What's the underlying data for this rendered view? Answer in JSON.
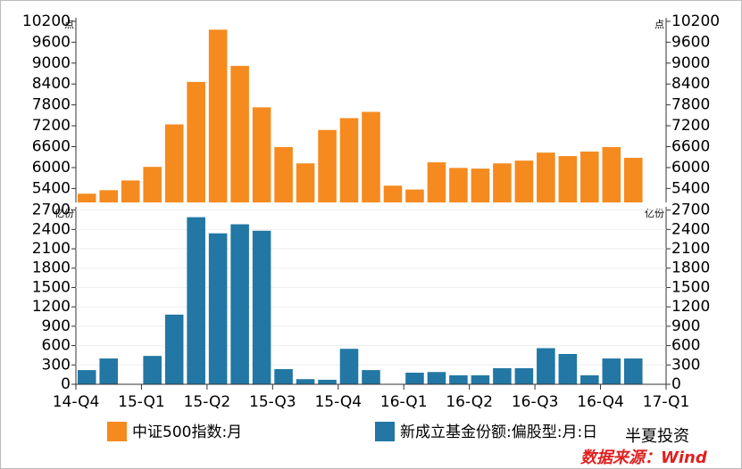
{
  "chart_data": [
    {
      "type": "bar",
      "unit_label": "点",
      "color": "#f58a1f",
      "legend": "中证500指数:月",
      "values": [
        5250,
        5350,
        5630,
        6020,
        7240,
        8460,
        9960,
        8920,
        7730,
        6590,
        6120,
        7080,
        7420,
        7600,
        5480,
        5370,
        6150,
        5990,
        5970,
        6120,
        6200,
        6430,
        6330,
        6460,
        6590,
        6280,
        null
      ],
      "ylim": [
        5000,
        10300
      ],
      "yticks": [
        5400,
        6000,
        6600,
        7200,
        7800,
        8400,
        9000,
        9600,
        10200
      ],
      "grid": false
    },
    {
      "type": "bar",
      "unit_label": "亿份",
      "color": "#2277a4",
      "legend": "新成立基金份额:偏股型:月:日",
      "values": [
        220,
        400,
        0,
        440,
        1080,
        2590,
        2340,
        2480,
        2380,
        235,
        80,
        70,
        550,
        220,
        0,
        180,
        190,
        140,
        140,
        250,
        250,
        560,
        470,
        140,
        400,
        400,
        null
      ],
      "ylim": [
        0,
        2750
      ],
      "yticks": [
        0,
        300,
        600,
        900,
        1200,
        1500,
        1800,
        2100,
        2400,
        2700
      ],
      "grid": true,
      "x_tick_labels": [
        "14-Q4",
        "15-Q1",
        "15-Q2",
        "15-Q3",
        "15-Q4",
        "16-Q1",
        "16-Q2",
        "16-Q3",
        "16-Q4",
        "17-Q1"
      ]
    }
  ],
  "watermark": "半夏投资",
  "source": "数据来源：Wind"
}
